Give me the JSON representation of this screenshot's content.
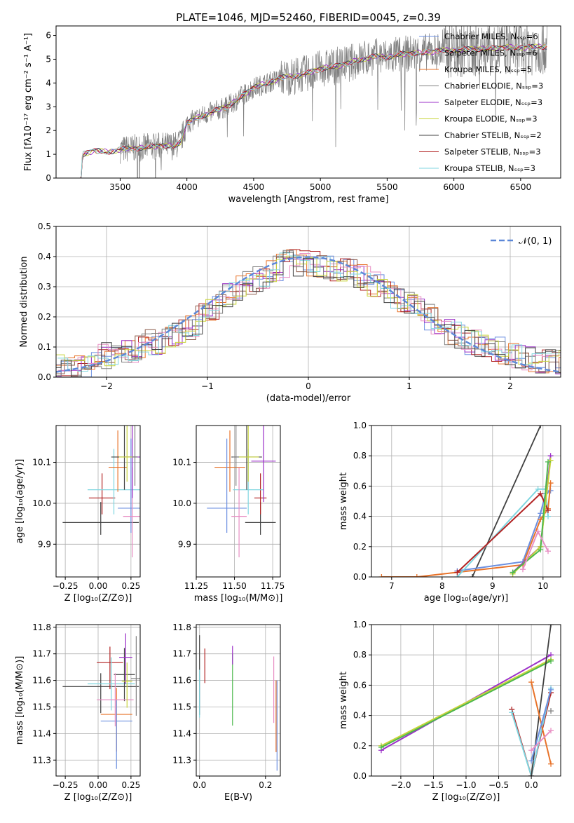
{
  "colors": [
    "#6b8fe0",
    "#e8732a",
    "#4cb84c",
    "#b22222",
    "#9b30c8",
    "#8c5a4a",
    "#e88fc4",
    "#7f7f7f",
    "#c8d43a",
    "#7fd6e0",
    "#404040"
  ],
  "chart_data": [
    {
      "id": "spectrum",
      "type": "line",
      "title": "PLATE=1046, MJD=52460, FIBERID=0045, z=0.39",
      "xlabel": "wavelength [Angstrom, rest frame]",
      "ylabel": "Flux [fλ10⁻¹⁷ erg cm⁻² s⁻¹ A⁻¹]",
      "xlim": [
        3020,
        6800
      ],
      "ylim": [
        0,
        6.4
      ],
      "xticks": [
        3500,
        4000,
        4500,
        5000,
        5500,
        6000,
        6500
      ],
      "yticks": [
        0,
        1,
        2,
        3,
        4,
        5,
        6
      ],
      "legend_position": "upper right",
      "series": [
        {
          "name": "Chabrier MILES, N_SSP=6",
          "color": "#6b8fe0"
        },
        {
          "name": "Salpeter MILES, N_SSP=6",
          "color": "#e88fc4"
        },
        {
          "name": "Kroupa MILES, N_SSP=5",
          "color": "#e8732a"
        },
        {
          "name": "Chabrier ELODIE, N_SSP=3",
          "color": "#7f7f7f"
        },
        {
          "name": "Salpeter ELODIE, N_SSP=3",
          "color": "#9b30c8"
        },
        {
          "name": "Kroupa ELODIE, N_SSP=3",
          "color": "#c8d43a"
        },
        {
          "name": "Chabrier STELIB, N_SSP=2",
          "color": "#404040"
        },
        {
          "name": "Salpeter STELIB, N_SSP=3",
          "color": "#b22222"
        },
        {
          "name": "Kroupa STELIB, N_SSP=3",
          "color": "#7fd6e0"
        }
      ],
      "continuum": {
        "x": [
          3200,
          3220,
          3300,
          3400,
          3500,
          3600,
          3700,
          3800,
          3900,
          3950,
          4000,
          4100,
          4200,
          4300,
          4400,
          4500,
          4600,
          4700,
          4800,
          4900,
          5000,
          5100,
          5200,
          5300,
          5400,
          5500,
          5600,
          5700,
          5800,
          5900,
          6000,
          6100,
          6200,
          6300,
          6400,
          6500,
          6600,
          6700
        ],
        "y": [
          0,
          1.0,
          1.15,
          1.1,
          1.2,
          1.25,
          1.3,
          1.35,
          1.35,
          1.5,
          2.3,
          2.6,
          2.8,
          3.0,
          3.4,
          3.8,
          4.0,
          4.2,
          4.3,
          4.4,
          4.6,
          4.7,
          4.8,
          5.0,
          5.1,
          5.1,
          5.2,
          5.25,
          5.3,
          5.35,
          5.4,
          5.4,
          5.45,
          5.45,
          5.5,
          5.5,
          5.5,
          5.55
        ]
      }
    },
    {
      "id": "residuals",
      "type": "line",
      "xlabel": "(data-model)/error",
      "ylabel": "Normed distribution",
      "xlim": [
        -2.5,
        2.5
      ],
      "ylim": [
        0,
        0.5
      ],
      "xticks": [
        -2,
        -1,
        0,
        1,
        2
      ],
      "yticks": [
        0.0,
        0.1,
        0.2,
        0.3,
        0.4,
        0.5
      ],
      "legend": "𝒩(0, 1)",
      "legend_position": "upper right",
      "series_envelope": {
        "x": [
          -2.5,
          -2.2,
          -2.0,
          -1.8,
          -1.6,
          -1.4,
          -1.2,
          -1.0,
          -0.8,
          -0.6,
          -0.4,
          -0.2,
          0.0,
          0.2,
          0.4,
          0.6,
          0.8,
          1.0,
          1.2,
          1.4,
          1.6,
          1.8,
          2.0,
          2.2,
          2.5
        ],
        "y": [
          0.03,
          0.04,
          0.07,
          0.08,
          0.11,
          0.13,
          0.16,
          0.21,
          0.27,
          0.31,
          0.34,
          0.38,
          0.38,
          0.37,
          0.35,
          0.32,
          0.28,
          0.24,
          0.2,
          0.15,
          0.12,
          0.1,
          0.08,
          0.06,
          0.05
        ]
      }
    },
    {
      "id": "age-vs-Z",
      "type": "scatter",
      "xlabel": "Z [log₁₀(Z/Z⊙)]",
      "ylabel": "age  [log₁₀(age/yr)]",
      "xlim": [
        -0.32,
        0.32
      ],
      "ylim": [
        9.82,
        10.19
      ],
      "xticks": [
        -0.25,
        0.0,
        0.25
      ],
      "yticks": [
        9.9,
        10.0,
        10.1
      ],
      "points": [
        {
          "x": 0.02,
          "y": 9.953,
          "xerr": 0.29,
          "yerr": [
            0.03,
            0.05
          ],
          "color": "#404040"
        },
        {
          "x": 0.03,
          "y": 10.013,
          "xerr": 0.1,
          "yerr": [
            0.04,
            0.06
          ],
          "color": "#b22222"
        },
        {
          "x": 0.12,
          "y": 10.033,
          "xerr": 0.2,
          "yerr": [
            0.06,
            0.1
          ],
          "color": "#7fd6e0"
        },
        {
          "x": 0.15,
          "y": 10.088,
          "xerr": 0.07,
          "yerr": [
            0.06,
            0.09
          ],
          "color": "#e8732a"
        },
        {
          "x": 0.2,
          "y": 10.113,
          "xerr": 0.1,
          "yerr": [
            0.08,
            0.1
          ],
          "color": "#404040"
        },
        {
          "x": 0.25,
          "y": 9.988,
          "xerr": 0.1,
          "yerr": [
            0.06,
            0.17
          ],
          "color": "#6b8fe0"
        },
        {
          "x": 0.26,
          "y": 9.968,
          "xerr": 0.07,
          "yerr": [
            0.1,
            0.12
          ],
          "color": "#e88fc4"
        },
        {
          "x": 0.26,
          "y": 10.113,
          "xerr": 0.06,
          "yerr": [
            0.1,
            0.25
          ],
          "color": "#9b30c8"
        },
        {
          "x": 0.22,
          "y": 10.113,
          "xerr": 0.06,
          "yerr": [
            0.06,
            0.2
          ],
          "color": "#c8d43a"
        },
        {
          "x": 0.28,
          "y": 10.113,
          "xerr": 0.02,
          "yerr": [
            0.07,
            0.2
          ],
          "color": "#7f7f7f"
        }
      ]
    },
    {
      "id": "age-vs-mass",
      "type": "scatter",
      "xlabel": "mass [log₁₀(M/M⊙)]",
      "ylabel": "",
      "xlim": [
        11.25,
        11.8
      ],
      "ylim": [
        9.82,
        10.19
      ],
      "xticks": [
        11.25,
        11.5,
        11.75
      ],
      "yticks": [
        9.9,
        10.0,
        10.1
      ],
      "points": [
        {
          "x": 11.67,
          "y": 9.953,
          "xerr": 0.1,
          "yerr": [
            0.03,
            0.05
          ],
          "color": "#404040"
        },
        {
          "x": 11.67,
          "y": 10.013,
          "xerr": 0.04,
          "yerr": [
            0.04,
            0.06
          ],
          "color": "#b22222"
        },
        {
          "x": 11.59,
          "y": 10.033,
          "xerr": 0.1,
          "yerr": [
            0.06,
            0.1
          ],
          "color": "#7fd6e0"
        },
        {
          "x": 11.47,
          "y": 10.088,
          "xerr": 0.1,
          "yerr": [
            0.06,
            0.09
          ],
          "color": "#e8732a"
        },
        {
          "x": 11.58,
          "y": 10.113,
          "xerr": 0.1,
          "yerr": [
            0.08,
            0.1
          ],
          "color": "#404040"
        },
        {
          "x": 11.45,
          "y": 9.988,
          "xerr": 0.13,
          "yerr": [
            0.06,
            0.17
          ],
          "color": "#6b8fe0"
        },
        {
          "x": 11.53,
          "y": 9.968,
          "xerr": 0.05,
          "yerr": [
            0.1,
            0.12
          ],
          "color": "#e88fc4"
        },
        {
          "x": 11.69,
          "y": 10.103,
          "xerr": 0.08,
          "yerr": [
            0.1,
            0.25
          ],
          "color": "#9b30c8"
        },
        {
          "x": 11.59,
          "y": 10.113,
          "xerr": 0.07,
          "yerr": [
            0.06,
            0.2
          ],
          "color": "#c8d43a"
        },
        {
          "x": 11.51,
          "y": 10.113,
          "xerr": 0.02,
          "yerr": [
            0.07,
            0.2
          ],
          "color": "#7f7f7f"
        }
      ]
    },
    {
      "id": "weight-vs-age",
      "type": "line",
      "xlabel": "age  [log₁₀(age/yr)]",
      "ylabel": "mass weight",
      "xlim": [
        6.6,
        10.35
      ],
      "ylim": [
        0,
        1.0
      ],
      "xticks": [
        7,
        8,
        9,
        10
      ],
      "yticks": [
        0.0,
        0.2,
        0.4,
        0.6,
        0.8,
        1.0
      ],
      "series": [
        {
          "color": "#404040",
          "x": [
            8.6,
            9.95
          ],
          "y": [
            0.0,
            1.0
          ]
        },
        {
          "color": "#6b8fe0",
          "x": [
            8.3,
            9.6,
            9.95,
            10.05,
            10.15
          ],
          "y": [
            0.04,
            0.1,
            0.42,
            0.55,
            0.57
          ]
        },
        {
          "color": "#e8732a",
          "x": [
            6.8,
            7.5,
            9.6,
            9.95,
            10.1,
            10.15
          ],
          "y": [
            0.0,
            0.0,
            0.08,
            0.38,
            0.45,
            0.62
          ]
        },
        {
          "color": "#7fd6e0",
          "x": [
            8.3,
            9.9,
            10.05,
            10.1
          ],
          "y": [
            0.0,
            0.58,
            0.58,
            0.4
          ]
        },
        {
          "color": "#b22222",
          "x": [
            8.3,
            9.95,
            10.1
          ],
          "y": [
            0.03,
            0.55,
            0.44
          ]
        },
        {
          "color": "#9b30c8",
          "x": [
            9.4,
            9.95,
            10.15
          ],
          "y": [
            0.03,
            0.2,
            0.8
          ]
        },
        {
          "color": "#c8d43a",
          "x": [
            9.4,
            9.95,
            10.15
          ],
          "y": [
            0.02,
            0.2,
            0.77
          ]
        },
        {
          "color": "#4cb84c",
          "x": [
            9.4,
            9.95,
            10.1
          ],
          "y": [
            0.03,
            0.18,
            0.76
          ]
        },
        {
          "color": "#e88fc4",
          "x": [
            9.6,
            9.9,
            10.1
          ],
          "y": [
            0.05,
            0.3,
            0.17
          ]
        }
      ]
    },
    {
      "id": "mass-vs-Z",
      "type": "scatter",
      "xlabel": "Z [log₁₀(Z/Z⊙)]",
      "ylabel": "mass [log₁₀(M/M⊙)]",
      "xlim": [
        -0.32,
        0.32
      ],
      "ylim": [
        11.24,
        11.81
      ],
      "xticks": [
        -0.25,
        0.0,
        0.25
      ],
      "yticks": [
        11.3,
        11.4,
        11.5,
        11.6,
        11.7,
        11.8
      ],
      "points": [
        {
          "x": 0.02,
          "y": 11.577,
          "xerr": 0.29,
          "yerr": [
            0.1,
            0.05
          ],
          "color": "#404040"
        },
        {
          "x": 0.09,
          "y": 11.667,
          "xerr": 0.1,
          "yerr": [
            0.1,
            0.06
          ],
          "color": "#b22222"
        },
        {
          "x": 0.1,
          "y": 11.587,
          "xerr": 0.18,
          "yerr": [
            0.1,
            0.1
          ],
          "color": "#7fd6e0"
        },
        {
          "x": 0.14,
          "y": 11.472,
          "xerr": 0.12,
          "yerr": [
            0.14,
            0.1
          ],
          "color": "#e8732a"
        },
        {
          "x": 0.2,
          "y": 11.622,
          "xerr": 0.08,
          "yerr": [
            0.1,
            0.1
          ],
          "color": "#404040"
        },
        {
          "x": 0.14,
          "y": 11.447,
          "xerr": 0.12,
          "yerr": [
            0.18,
            0.08
          ],
          "color": "#6b8fe0"
        },
        {
          "x": 0.13,
          "y": 11.527,
          "xerr": 0.14,
          "yerr": [
            0.1,
            0.1
          ],
          "color": "#e88fc4"
        },
        {
          "x": 0.21,
          "y": 11.687,
          "xerr": 0.05,
          "yerr": [
            0.1,
            0.09
          ],
          "color": "#9b30c8"
        },
        {
          "x": 0.22,
          "y": 11.597,
          "xerr": 0.04,
          "yerr": [
            0.1,
            0.07
          ],
          "color": "#c8d43a"
        },
        {
          "x": 0.29,
          "y": 11.607,
          "xerr": 0.04,
          "yerr": [
            0.14,
            0.16
          ],
          "color": "#7f7f7f"
        }
      ]
    },
    {
      "id": "mass-vs-ebv",
      "type": "scatter",
      "xlabel": "E(B-V)",
      "ylabel": "",
      "xlim": [
        -0.01,
        0.245
      ],
      "ylim": [
        11.24,
        11.81
      ],
      "xticks": [
        0.0,
        0.2
      ],
      "yticks": [
        11.3,
        11.4,
        11.5,
        11.6,
        11.7,
        11.8
      ],
      "points": [
        {
          "x": 0.0,
          "y": 11.58,
          "yerr": [
            0.11,
            0.19
          ],
          "color": "#404040"
        },
        {
          "x": 0.0,
          "y": 11.56,
          "yerr": [
            0.1,
            0.08
          ],
          "color": "#7fd6e0"
        },
        {
          "x": 0.016,
          "y": 11.66,
          "yerr": [
            0.07,
            0.06
          ],
          "color": "#b22222"
        },
        {
          "x": 0.1,
          "y": 11.58,
          "yerr": [
            0.15,
            0.12
          ],
          "color": "#4cb84c"
        },
        {
          "x": 0.1,
          "y": 11.69,
          "yerr": [
            0.03,
            0.04
          ],
          "color": "#9b30c8"
        },
        {
          "x": 0.225,
          "y": 11.55,
          "yerr": [
            0.11,
            0.14
          ],
          "color": "#e88fc4"
        },
        {
          "x": 0.232,
          "y": 11.45,
          "yerr": [
            0.12,
            0.15
          ],
          "color": "#e8732a"
        },
        {
          "x": 0.235,
          "y": 11.41,
          "yerr": [
            0.15,
            0.19
          ],
          "color": "#6b8fe0"
        }
      ]
    },
    {
      "id": "weight-vs-Z",
      "type": "line",
      "xlabel": "Z [log₁₀(Z/Z⊙)]",
      "ylabel": "mass weight",
      "xlim": [
        -2.45,
        0.45
      ],
      "ylim": [
        0,
        1.0
      ],
      "xticks": [
        -2.0,
        -1.5,
        -1.0,
        -0.5,
        0.0
      ],
      "yticks": [
        0.0,
        0.2,
        0.4,
        0.6,
        0.8,
        1.0
      ],
      "series": [
        {
          "color": "#9b30c8",
          "x": [
            -2.3,
            0.3
          ],
          "y": [
            0.17,
            0.8
          ]
        },
        {
          "color": "#c8d43a",
          "x": [
            -2.3,
            0.3
          ],
          "y": [
            0.2,
            0.77
          ]
        },
        {
          "color": "#4cb84c",
          "x": [
            -2.3,
            0.3
          ],
          "y": [
            0.19,
            0.76
          ]
        },
        {
          "color": "#b22222",
          "x": [
            -0.3,
            0.0,
            0.3
          ],
          "y": [
            0.44,
            0.0,
            0.55
          ]
        },
        {
          "color": "#7fd6e0",
          "x": [
            -0.3,
            0.0,
            0.3
          ],
          "y": [
            0.42,
            0.0,
            0.58
          ]
        },
        {
          "color": "#404040",
          "x": [
            0.0,
            0.3
          ],
          "y": [
            0.0,
            1.0
          ]
        },
        {
          "color": "#e8732a",
          "x": [
            0.0,
            0.3
          ],
          "y": [
            0.62,
            0.08
          ]
        },
        {
          "color": "#6b8fe0",
          "x": [
            0.0,
            0.3
          ],
          "y": [
            0.1,
            0.57
          ]
        },
        {
          "color": "#e88fc4",
          "x": [
            0.0,
            0.3
          ],
          "y": [
            0.17,
            0.3
          ]
        },
        {
          "color": "#7f7f7f",
          "x": [
            0.3
          ],
          "y": [
            0.43
          ]
        }
      ]
    }
  ]
}
